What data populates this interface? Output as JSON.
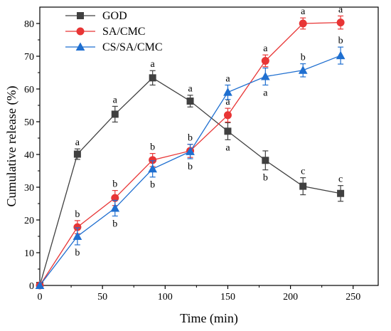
{
  "chart_data": {
    "type": "line",
    "xlabel": "Time (min)",
    "ylabel": "Cumulative release  (%)",
    "xlim": [
      0,
      270
    ],
    "ylim": [
      0,
      85
    ],
    "xticks": [
      0,
      50,
      100,
      150,
      200,
      250
    ],
    "yticks": [
      0,
      10,
      20,
      30,
      40,
      50,
      60,
      70,
      80
    ],
    "grid": false,
    "legend_position": "top-left",
    "series": [
      {
        "name": "GOD",
        "color": "#404040",
        "marker": "square",
        "x": [
          0,
          30,
          60,
          90,
          120,
          150,
          180,
          210,
          240
        ],
        "y": [
          0,
          40.1,
          52.3,
          63.4,
          56.3,
          47.1,
          38.2,
          30.3,
          28.1
        ],
        "error": [
          0,
          1.6,
          2.4,
          2.2,
          1.8,
          2.6,
          2.9,
          2.6,
          2.4
        ],
        "letters": [
          "",
          "a",
          "a",
          "a",
          "a",
          "a",
          "b",
          "c",
          "c"
        ],
        "letter_pos": [
          "",
          "above",
          "above",
          "above",
          "above",
          "below",
          "below",
          "above",
          "above"
        ]
      },
      {
        "name": "SA/CMC",
        "color": "#e83535",
        "marker": "circle",
        "x": [
          0,
          30,
          60,
          90,
          120,
          150,
          180,
          210,
          240
        ],
        "y": [
          0,
          17.8,
          26.7,
          38.3,
          41.1,
          52.0,
          68.6,
          80.0,
          80.3
        ],
        "error": [
          0,
          2.0,
          2.3,
          2.0,
          2.0,
          2.1,
          1.8,
          1.7,
          2.0
        ],
        "letters": [
          "",
          "b",
          "b",
          "b",
          "b",
          "a",
          "a",
          "a",
          "a"
        ],
        "letter_pos": [
          "",
          "above",
          "above",
          "above",
          "above",
          "above",
          "above",
          "above",
          "above"
        ]
      },
      {
        "name": "CS/SA/CMC",
        "color": "#1f6fd0",
        "marker": "triangle",
        "x": [
          0,
          30,
          60,
          90,
          120,
          150,
          180,
          210,
          240
        ],
        "y": [
          0,
          15.0,
          23.6,
          35.6,
          40.9,
          59.0,
          63.8,
          65.7,
          70.2
        ],
        "error": [
          0,
          2.6,
          2.4,
          2.5,
          2.2,
          2.2,
          2.6,
          2.0,
          2.6
        ],
        "letters": [
          "",
          "b",
          "b",
          "b",
          "b",
          "a",
          "a",
          "b",
          "b"
        ],
        "letter_pos": [
          "",
          "below",
          "below",
          "below",
          "below",
          "above",
          "below",
          "above",
          "above"
        ]
      }
    ]
  }
}
